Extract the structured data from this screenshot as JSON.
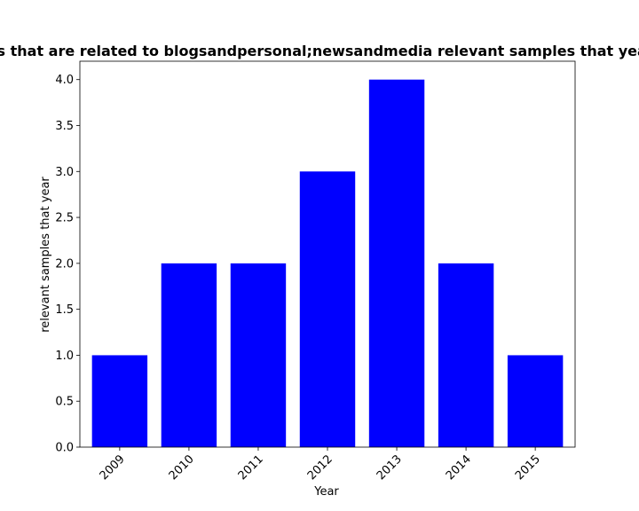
{
  "chart_data": {
    "type": "bar",
    "title": "Number of samples that are related to blogsandpersonal;newsandmedia relevant samples that year in privacy policies",
    "xlabel": "Year",
    "ylabel": "relevant samples that year",
    "categories": [
      "2009",
      "2010",
      "2011",
      "2012",
      "2013",
      "2014",
      "2015"
    ],
    "values": [
      1,
      2,
      2,
      3,
      4,
      2,
      1
    ],
    "ylim": [
      0,
      4.2
    ],
    "yticks": [
      "0.0",
      "0.5",
      "1.0",
      "1.5",
      "2.0",
      "2.5",
      "3.0",
      "3.5",
      "4.0"
    ],
    "bar_color": "#0000ff",
    "grid": false,
    "legend": "none"
  }
}
